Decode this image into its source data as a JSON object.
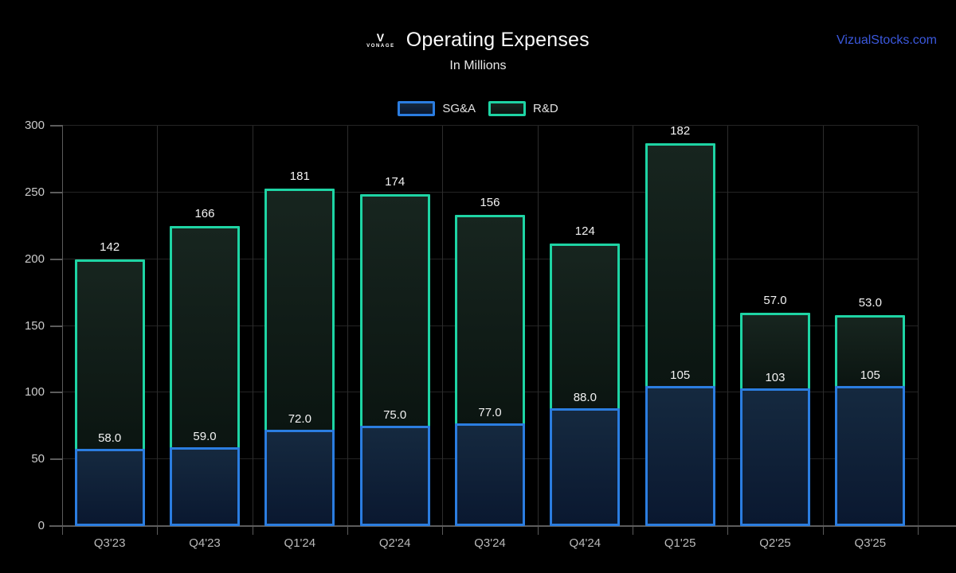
{
  "header": {
    "logo_mark": "V",
    "logo_text": "VONAGE",
    "title": "Operating Expenses",
    "subtitle": "In Millions",
    "watermark": "VizualStocks.com"
  },
  "chart_data": {
    "type": "bar",
    "stacked": true,
    "title": "Operating Expenses",
    "subtitle": "In Millions",
    "categories": [
      "Q3'23",
      "Q4'23",
      "Q1'24",
      "Q2'24",
      "Q3'24",
      "Q4'24",
      "Q1'25",
      "Q2'25",
      "Q3'25"
    ],
    "series": [
      {
        "name": "SG&A",
        "values": [
          58,
          59,
          72,
          75,
          77,
          88,
          105,
          103,
          105
        ],
        "labels": [
          "58.0",
          "59.0",
          "72.0",
          "75.0",
          "77.0",
          "88.0",
          "105",
          "103",
          "105"
        ],
        "border_color": "#2b7de0",
        "fill_top": "#15293f",
        "fill_bottom": "#0a1830"
      },
      {
        "name": "R&D",
        "values": [
          142,
          166,
          181,
          174,
          156,
          124,
          182,
          57,
          53
        ],
        "labels": [
          "142",
          "166",
          "181",
          "174",
          "156",
          "124",
          "182",
          "57.0",
          "53.0"
        ],
        "border_color": "#1ed4a4",
        "fill_top": "#17251f",
        "fill_bottom": "#0b1511"
      }
    ],
    "xlabel": "",
    "ylabel": "",
    "ylim": [
      0,
      300
    ],
    "yticks": [
      0,
      50,
      100,
      150,
      200,
      250,
      300
    ],
    "grid": true,
    "legend_position": "top-center"
  },
  "colors": {
    "background": "#000000",
    "watermark_blue": "#3b58dd",
    "grid_horizontal": "#242424",
    "grid_vertical": "#2d2d2d",
    "axis": "#5c5c5c",
    "tick_label": "#cbcbcb",
    "value_label": "#f2f2f2"
  }
}
